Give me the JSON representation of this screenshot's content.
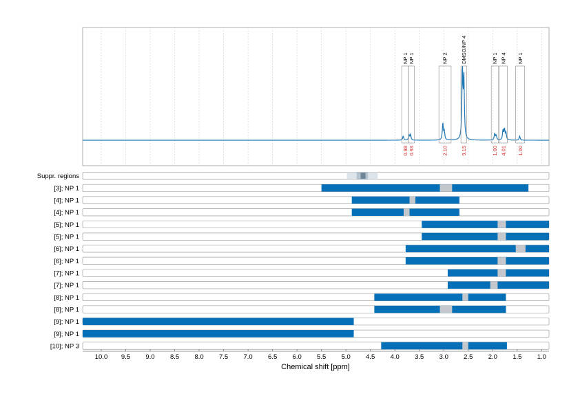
{
  "chart_data": {
    "type": "line",
    "xlabel": "Chemical shift [ppm]",
    "xlim": [
      10.38,
      0.85
    ],
    "x_reversed": true,
    "x_ticks": [
      "10.0",
      "9.5",
      "9.0",
      "8.5",
      "8.0",
      "7.5",
      "7.0",
      "6.5",
      "6.0",
      "5.5",
      "5.0",
      "4.5",
      "4.0",
      "3.5",
      "3.0",
      "2.5",
      "2.0",
      "1.5",
      "1.0"
    ],
    "colors": {
      "spectrum": "#1f77b4",
      "bar": "#0570b8",
      "gap": "#c4c8cc",
      "integral": "#d62728",
      "suppr_light": "#dde4ea",
      "suppr_mid": "#b4c3d0",
      "suppr_dark": "#6e8598"
    },
    "spectrum_peaks": [
      {
        "ppm": 3.83,
        "height": 0.06
      },
      {
        "ppm": 3.71,
        "height": 0.07
      },
      {
        "ppm": 3.68,
        "height": 0.08
      },
      {
        "ppm": 3.02,
        "height": 0.24
      },
      {
        "ppm": 2.99,
        "height": 0.12
      },
      {
        "ppm": 2.62,
        "height": 1.0
      },
      {
        "ppm": 2.59,
        "height": 0.88
      },
      {
        "ppm": 1.96,
        "height": 0.09
      },
      {
        "ppm": 1.93,
        "height": 0.07
      },
      {
        "ppm": 1.79,
        "height": 0.14
      },
      {
        "ppm": 1.76,
        "height": 0.15
      },
      {
        "ppm": 1.73,
        "height": 0.1
      },
      {
        "ppm": 1.45,
        "height": 0.06
      }
    ],
    "peak_regions": [
      {
        "label": "NP 1",
        "from": 3.86,
        "to": 3.72,
        "integral": "0.88"
      },
      {
        "label": "NP 1",
        "from": 3.72,
        "to": 3.6,
        "integral": "0.93"
      },
      {
        "label": "NP 2",
        "from": 3.1,
        "to": 2.85,
        "integral": "2.10"
      },
      {
        "label": "DMSO/NP 4",
        "from": 2.65,
        "to": 2.53,
        "integral": "9.15"
      },
      {
        "label": "NP 1",
        "from": 2.03,
        "to": 1.88,
        "integral": "1.00"
      },
      {
        "label": "NP 4",
        "from": 1.87,
        "to": 1.7,
        "integral": "4.01"
      },
      {
        "label": "NP 1",
        "from": 1.53,
        "to": 1.35,
        "integral": "1.00"
      }
    ],
    "suppr_regions": {
      "label": "Suppr. regions",
      "outer": [
        4.98,
        4.35
      ],
      "mid": [
        4.78,
        4.55
      ],
      "inner": [
        4.7,
        4.6
      ]
    },
    "rows": [
      {
        "label": "[3]; NP 1",
        "from": 5.5,
        "to": 1.27,
        "gap": [
          3.08,
          2.83
        ]
      },
      {
        "label": "[4]; NP 1",
        "from": 4.88,
        "to": 2.68,
        "gap": [
          3.7,
          3.58
        ]
      },
      {
        "label": "[4]; NP 1",
        "from": 4.88,
        "to": 2.68,
        "gap": [
          3.82,
          3.7
        ]
      },
      {
        "label": "[5]; NP 1",
        "from": 3.45,
        "to": 0.85,
        "gap": [
          1.9,
          1.73
        ]
      },
      {
        "label": "[5]; NP 1",
        "from": 3.45,
        "to": 0.85,
        "gap": [
          1.9,
          1.73
        ]
      },
      {
        "label": "[6]; NP 1",
        "from": 3.78,
        "to": 0.85,
        "gap": [
          1.53,
          1.33
        ]
      },
      {
        "label": "[6]; NP 1",
        "from": 3.78,
        "to": 0.85,
        "gap": [
          1.9,
          1.73
        ]
      },
      {
        "label": "[7]; NP 1",
        "from": 2.92,
        "to": 0.85,
        "gap": [
          1.9,
          1.73
        ]
      },
      {
        "label": "[7]; NP 1",
        "from": 2.92,
        "to": 0.85,
        "gap": [
          2.05,
          1.9
        ]
      },
      {
        "label": "[8]; NP 1",
        "from": 4.42,
        "to": 1.73,
        "gap": [
          2.62,
          2.5
        ]
      },
      {
        "label": "[8]; NP 1",
        "from": 4.42,
        "to": 1.73,
        "gap": [
          3.08,
          2.83
        ]
      },
      {
        "label": "[9]; NP 1",
        "from": 10.38,
        "to": 4.84,
        "gap": null
      },
      {
        "label": "[9]; NP 1",
        "from": 10.38,
        "to": 4.84,
        "gap": null
      },
      {
        "label": "[10]; NP 3",
        "from": 4.28,
        "to": 1.71,
        "gap": [
          2.62,
          2.5
        ]
      }
    ]
  }
}
